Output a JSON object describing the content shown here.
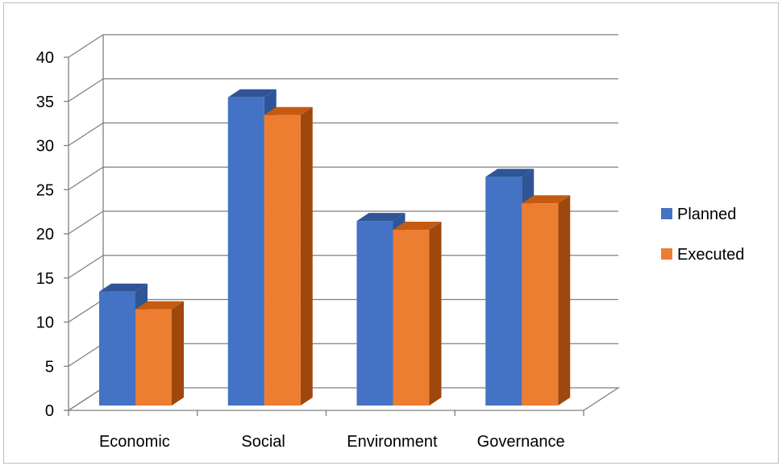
{
  "chart_data": {
    "type": "bar",
    "style": "3d-clustered-column",
    "categories": [
      "Economic",
      "Social",
      "Environment",
      "Governance"
    ],
    "series": [
      {
        "name": "Planned",
        "values": [
          14,
          36,
          22,
          27
        ],
        "color": "#4472c4",
        "top_color": "#2f5597",
        "side_color": "#2f5597"
      },
      {
        "name": "Executed",
        "values": [
          12,
          34,
          21,
          24
        ],
        "color": "#ed7d31",
        "top_color": "#c55a11",
        "side_color": "#9e480e"
      }
    ],
    "ylim": [
      0,
      40
    ],
    "yticks": [
      "0",
      "5",
      "10",
      "15",
      "20",
      "25",
      "30",
      "35",
      "40"
    ],
    "grid": true,
    "legend": "right",
    "title": "",
    "xlabel": "",
    "ylabel": ""
  }
}
